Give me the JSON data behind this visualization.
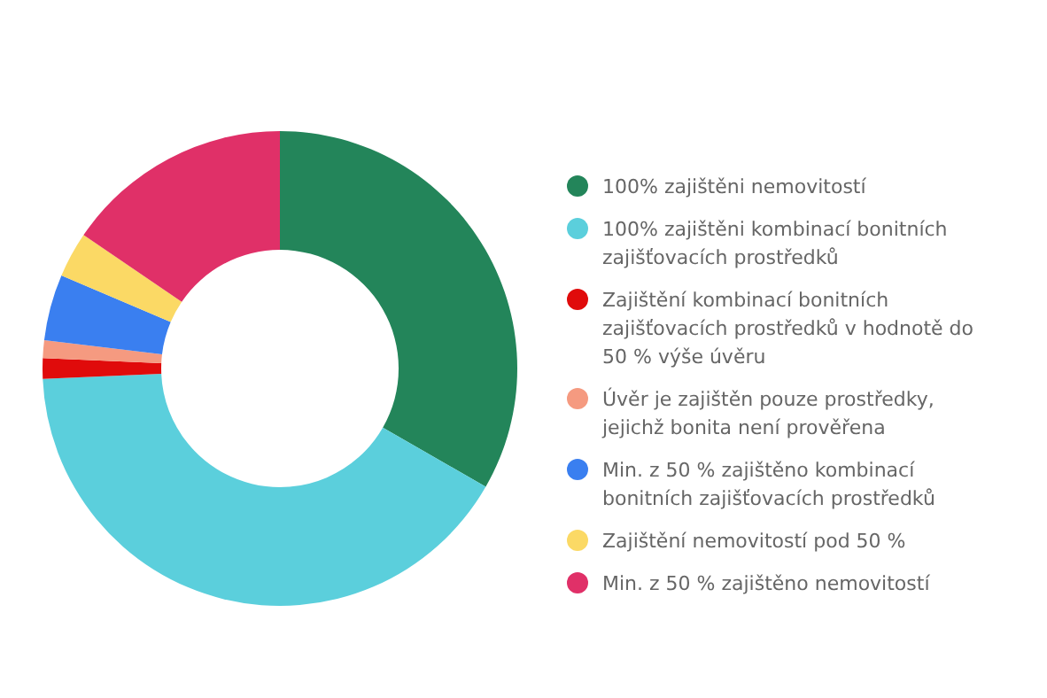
{
  "chart_data": {
    "type": "donut",
    "categories": [
      "100% zajištěni nemovitostí",
      "100% zajištěni kombinací bonitních zajišťovacích prostředků",
      "Zajištění kombinací bonitních zajišťovacích prostředků v hodnotě do 50 % výše úvěru",
      "Úvěr je zajištěn pouze prostředky, jejichž bonita není prověřena",
      "Min. z 50 % zajištěno kombinací bonitních zajišťovacích prostředků",
      "Zajištění nemovitostí pod 50 %",
      "Min. z 50 % zajištěno nemovitostí"
    ],
    "values": [
      33.3,
      41.0,
      1.4,
      1.2,
      4.5,
      3.1,
      15.5
    ],
    "colors": [
      "#23855a",
      "#5bcfdc",
      "#e00b0b",
      "#f59a80",
      "#3a7ff0",
      "#fbd965",
      "#e03068"
    ],
    "legend": "right"
  }
}
